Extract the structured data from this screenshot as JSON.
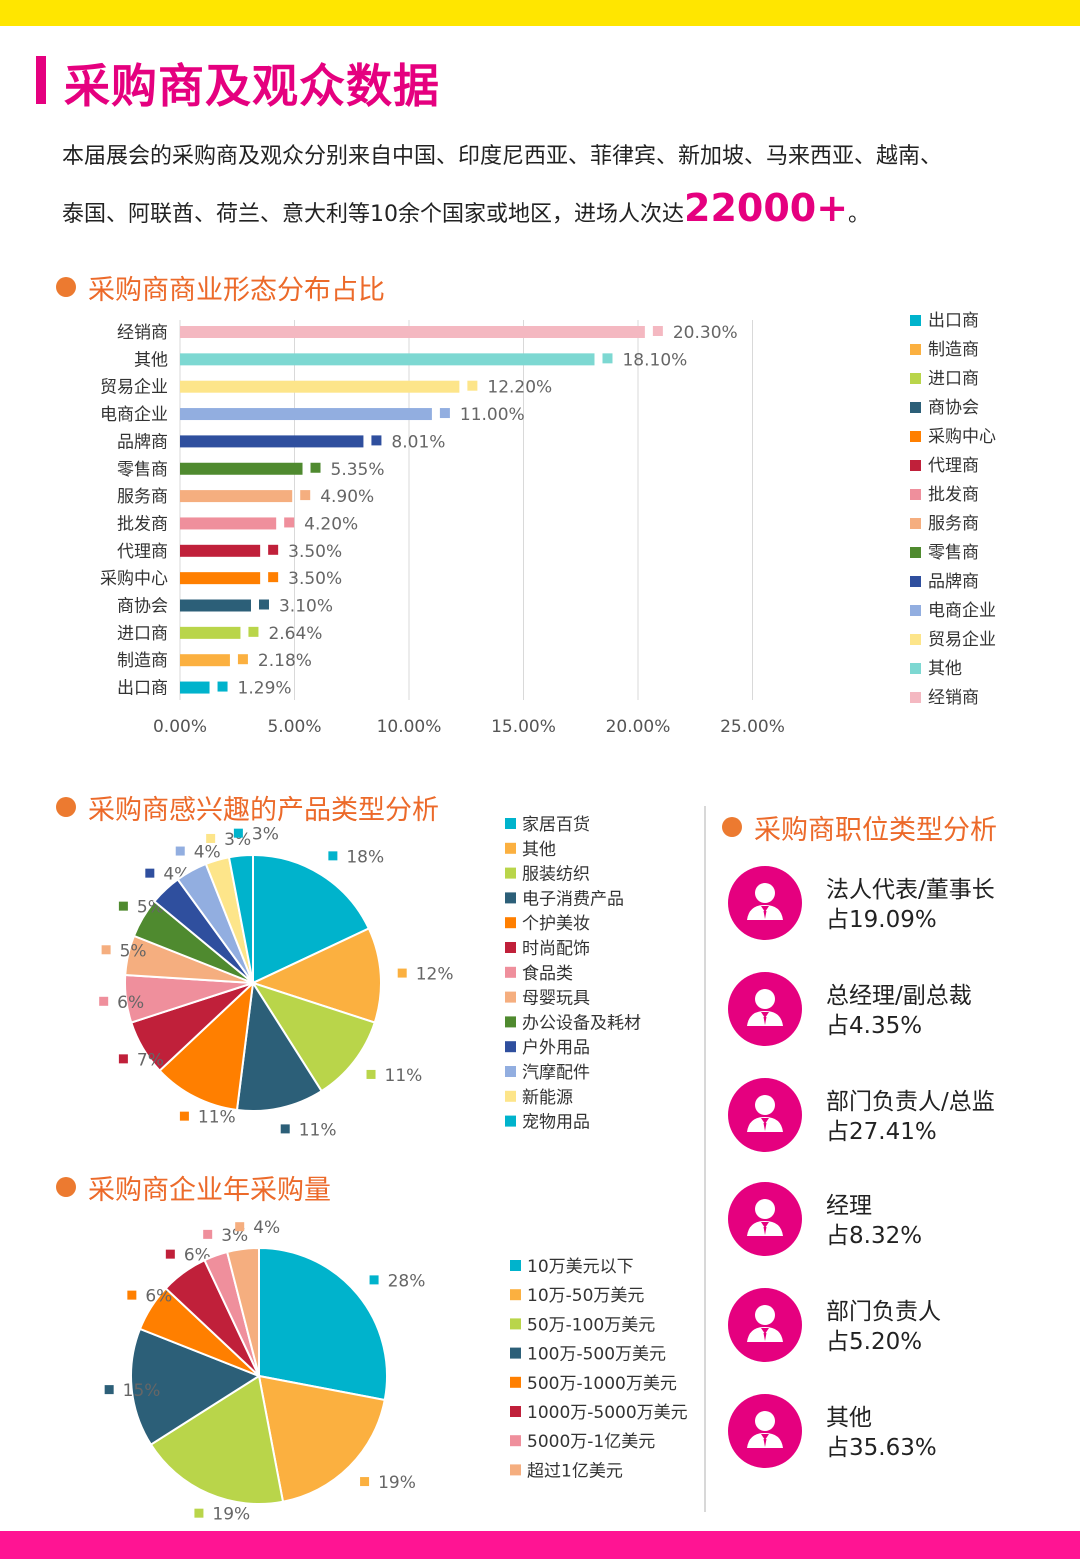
{
  "title": "采购商及观众数据",
  "intro": {
    "line1": "本届展会的采购商及观众分别来自中国、印度尼西亚、菲律宾、新加坡、马来西亚、越南、",
    "line2": "泰国、阿联酋、荷兰、意大利等10余个国家或地区，进场人次达",
    "highlight": "22000+",
    "end": "。"
  },
  "sections": {
    "business": "采购商商业形态分布占比",
    "products": "采购商感兴趣的产品类型分析",
    "volume": "采购商企业年采购量",
    "positions": "采购商职位类型分析"
  },
  "colors": {
    "accent": "#e5007f",
    "section": "#ec6a2a",
    "top_bar": "#ffe600",
    "bottom_bar": "#ff1493"
  },
  "chart_data": [
    {
      "type": "bar",
      "orientation": "horizontal",
      "categories": [
        "经销商",
        "其他",
        "贸易企业",
        "电商企业",
        "品牌商",
        "零售商",
        "服务商",
        "批发商",
        "代理商",
        "采购中心",
        "商协会",
        "进口商",
        "制造商",
        "出口商"
      ],
      "values": [
        20.3,
        18.1,
        12.2,
        11.0,
        8.01,
        5.35,
        4.9,
        4.2,
        3.5,
        3.5,
        3.1,
        2.64,
        2.18,
        1.29
      ],
      "labels": [
        "20.30%",
        "18.10%",
        "12.20%",
        "11.00%",
        "8.01%",
        "5.35%",
        "4.90%",
        "4.20%",
        "3.50%",
        "3.50%",
        "3.10%",
        "2.64%",
        "2.18%",
        "1.29%"
      ],
      "colors": [
        "#f4b8c1",
        "#7dd8d2",
        "#fde58a",
        "#92aee0",
        "#2f4f9e",
        "#4f8a2f",
        "#f5ae7f",
        "#ef8f9c",
        "#c0203a",
        "#ff7f00",
        "#2c5f78",
        "#b9d54a",
        "#fbb040",
        "#00b3cc"
      ],
      "xticks": [
        "0.00%",
        "5.00%",
        "10.00%",
        "15.00%",
        "20.00%",
        "25.00%"
      ],
      "xlim": [
        0,
        25
      ],
      "grid": true,
      "legend_position": "right",
      "legend": [
        "出口商",
        "制造商",
        "进口商",
        "商协会",
        "采购中心",
        "代理商",
        "批发商",
        "服务商",
        "零售商",
        "品牌商",
        "电商企业",
        "贸易企业",
        "其他",
        "经销商"
      ]
    },
    {
      "type": "pie",
      "categories": [
        "家居百货",
        "其他",
        "服装纺织",
        "电子消费产品",
        "个护美妆",
        "时尚配饰",
        "食品类",
        "母婴玩具",
        "办公设备及耗材",
        "户外用品",
        "汽摩配件",
        "新能源",
        "宠物用品"
      ],
      "values": [
        18,
        12,
        11,
        11,
        11,
        7,
        6,
        5,
        5,
        4,
        4,
        3,
        3
      ],
      "labels": [
        "18%",
        "12%",
        "11%",
        "11%",
        "11%",
        "7%",
        "6%",
        "5%",
        "5%",
        "4%",
        "4%",
        "3%",
        "3%"
      ],
      "colors": [
        "#00b3cc",
        "#fbb040",
        "#b9d54a",
        "#2c5f78",
        "#ff7f00",
        "#c0203a",
        "#ef8f9c",
        "#f5ae7f",
        "#4f8a2f",
        "#2f4f9e",
        "#92aee0",
        "#fde58a",
        "#00b3cc"
      ],
      "legend_position": "right"
    },
    {
      "type": "pie",
      "categories": [
        "10万美元以下",
        "10万-50万美元",
        "50万-100万美元",
        "100万-500万美元",
        "500万-1000万美元",
        "1000万-5000万美元",
        "5000万-1亿美元",
        "超过1亿美元"
      ],
      "values": [
        28,
        19,
        19,
        15,
        6,
        6,
        3,
        4
      ],
      "labels": [
        "28%",
        "19%",
        "19%",
        "15%",
        "6%",
        "6%",
        "3%",
        "4%"
      ],
      "colors": [
        "#00b3cc",
        "#fbb040",
        "#b9d54a",
        "#2c5f78",
        "#ff7f00",
        "#c0203a",
        "#ef8f9c",
        "#f5ae7f"
      ],
      "legend_position": "right"
    }
  ],
  "positions": [
    {
      "label": "法人代表/董事长",
      "value": "占19.09%"
    },
    {
      "label": "总经理/副总裁",
      "value": "占4.35%"
    },
    {
      "label": "部门负责人/总监",
      "value": "占27.41%"
    },
    {
      "label": "经理",
      "value": "占8.32%"
    },
    {
      "label": "部门负责人",
      "value": "占5.20%"
    },
    {
      "label": "其他",
      "value": "占35.63%"
    }
  ],
  "position_icon": "person-in-suit-icon"
}
